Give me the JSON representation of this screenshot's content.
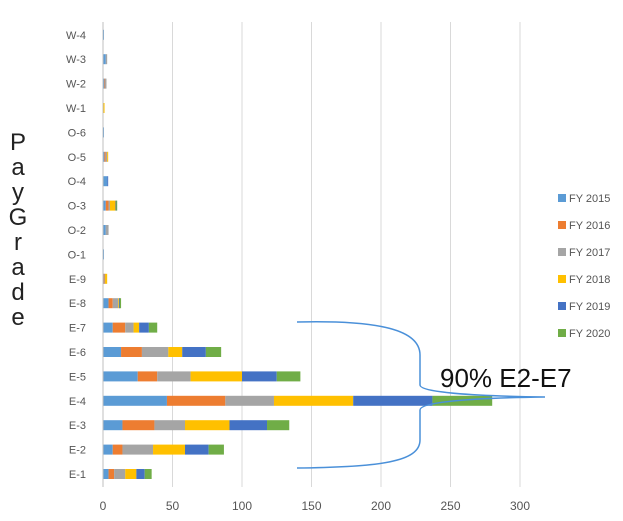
{
  "chart_data": {
    "type": "bar",
    "orientation": "horizontal",
    "stacked": true,
    "ylabel": "PayGrade",
    "categories": [
      "E-1",
      "E-2",
      "E-3",
      "E-4",
      "E-5",
      "E-6",
      "E-7",
      "E-8",
      "E-9",
      "O-1",
      "O-2",
      "O-3",
      "O-4",
      "O-5",
      "O-6",
      "W-1",
      "W-2",
      "W-3",
      "W-4"
    ],
    "series": [
      {
        "name": "FY 2015",
        "color": "#5B9BD5",
        "values": [
          4,
          7,
          14,
          46,
          25,
          13,
          7,
          4,
          0.5,
          0.3,
          2,
          2,
          3,
          1,
          0.5,
          0.3,
          1,
          2,
          0.3
        ]
      },
      {
        "name": "FY 2016",
        "color": "#ED7D31",
        "values": [
          4,
          7,
          23,
          42,
          14,
          15,
          9,
          3,
          0.5,
          0,
          0,
          2,
          0,
          1,
          0,
          0,
          0.5,
          0,
          0
        ]
      },
      {
        "name": "FY 2017",
        "color": "#A5A5A5",
        "values": [
          8,
          22,
          22,
          35,
          24,
          19,
          6,
          4,
          0.5,
          0,
          2,
          1,
          0,
          1,
          0,
          0,
          1,
          1,
          0
        ]
      },
      {
        "name": "FY 2018",
        "color": "#FFC000",
        "values": [
          8,
          23,
          32,
          57,
          37,
          10,
          4,
          0.5,
          1.5,
          0,
          0,
          4,
          0,
          0.5,
          0,
          0.8,
          0,
          0,
          0
        ]
      },
      {
        "name": "FY 2019",
        "color": "#4472C4",
        "values": [
          6,
          17,
          27,
          57,
          25,
          17,
          7,
          0.5,
          0,
          0,
          0,
          0.5,
          0.5,
          0,
          0,
          0,
          0,
          0,
          0
        ]
      },
      {
        "name": "FY 2020",
        "color": "#70AD47",
        "values": [
          5,
          11,
          16,
          43,
          17,
          11,
          6,
          1,
          0,
          0,
          0,
          0.5,
          0,
          0,
          0,
          0,
          0,
          0,
          0
        ]
      }
    ],
    "xlim": [
      0,
      350
    ],
    "xticks": [
      0,
      50,
      100,
      150,
      200,
      250,
      300
    ],
    "grid": true,
    "legend": "right",
    "annotation": "90% E2-E7"
  }
}
